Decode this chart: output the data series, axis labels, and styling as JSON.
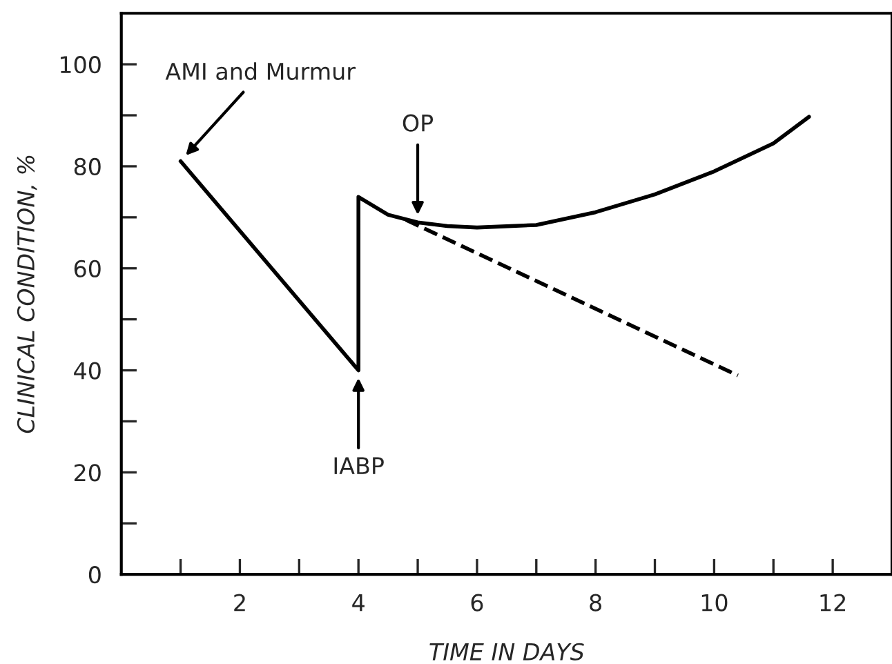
{
  "chart_data": {
    "type": "line",
    "xlabel": "TIME IN DAYS",
    "ylabel": "CLINICAL CONDITION, %",
    "xlim": [
      0,
      13
    ],
    "ylim": [
      0,
      110
    ],
    "xticks": [
      {
        "value": 1,
        "label": null
      },
      2,
      {
        "value": 3,
        "label": null
      },
      4,
      {
        "value": 5,
        "label": null
      },
      6,
      {
        "value": 7,
        "label": null
      },
      8,
      {
        "value": 9,
        "label": null
      },
      10,
      {
        "value": 11,
        "label": null
      },
      12
    ],
    "yticks": [
      0,
      {
        "value": 10,
        "label": null
      },
      20,
      {
        "value": 30,
        "label": null
      },
      40,
      {
        "value": 50,
        "label": null
      },
      60,
      {
        "value": 70,
        "label": null
      },
      80,
      {
        "value": 90,
        "label": null
      },
      100
    ],
    "grid": false,
    "legend": false,
    "marker": "none",
    "series": [
      {
        "color": "#000000",
        "line_style": "solid",
        "x": [
          1,
          4,
          4,
          4.5,
          5,
          5.5,
          6,
          7,
          8,
          9,
          10,
          11,
          11.6
        ],
        "values": [
          81,
          40,
          74,
          70.5,
          69,
          68.3,
          68,
          68.5,
          71,
          74.5,
          79,
          84.5,
          89.7
        ]
      },
      {
        "color": "#000000",
        "line_style": "dashed",
        "x": [
          4.8,
          10.4
        ],
        "values": [
          69.5,
          39
        ]
      }
    ],
    "annotations": [
      {
        "text": "AMI and Murmur",
        "x": 1,
        "y": 81
      },
      {
        "text": "IABP",
        "x": 4,
        "y": 40
      },
      {
        "text": "OP",
        "x": 5,
        "y": 69
      }
    ]
  }
}
